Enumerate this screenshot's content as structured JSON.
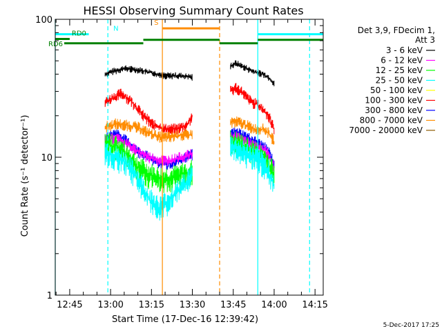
{
  "chart_data": {
    "type": "line",
    "title": "HESSI Observing Summary Count Rates",
    "xlabel": "Start Time (17-Dec-16 12:39:42)",
    "ylabel": "Count Rate (s⁻¹ detector⁻¹)",
    "y_scale": "log",
    "ylim": [
      1,
      100
    ],
    "xlim_minutes": [
      "12:39:42",
      "14:18:00"
    ],
    "x_ticks": [
      {
        "t": "12:45",
        "label": "12:45"
      },
      {
        "t": "13:00",
        "label": "13:00"
      },
      {
        "t": "13:15",
        "label": "13:15"
      },
      {
        "t": "13:30",
        "label": "13:30"
      },
      {
        "t": "13:45",
        "label": "13:45"
      },
      {
        "t": "14:00",
        "label": "14:00"
      },
      {
        "t": "14:15",
        "label": "14:15"
      }
    ],
    "y_ticks": [
      {
        "v": 1,
        "label": "1"
      },
      {
        "v": 10,
        "label": "10"
      },
      {
        "v": 100,
        "label": "100"
      }
    ],
    "legend": {
      "placement": "right",
      "header": [
        "Det 3,9, FDecim 1,",
        "Att 3"
      ],
      "entries": [
        {
          "label": "3 - 6 keV",
          "color": "#000000"
        },
        {
          "label": "6 - 12 keV",
          "color": "#ff00ff"
        },
        {
          "label": "12 - 25 keV",
          "color": "#00ff00"
        },
        {
          "label": "25 - 50 keV",
          "color": "#00ffff"
        },
        {
          "label": "50 - 100 keV",
          "color": "#ffff00"
        },
        {
          "label": "100 - 300 keV",
          "color": "#ff0000"
        },
        {
          "label": "300 - 800 keV",
          "color": "#0000ff"
        },
        {
          "label": "800 - 7000 keV",
          "color": "#ff8c00"
        },
        {
          "label": "7000 - 20000 keV",
          "color": "#8b5a00"
        }
      ]
    },
    "series": [
      {
        "name": "3 - 6 keV",
        "color": "#000000",
        "segments": [
          {
            "t": [
              "12:58",
              "13:01",
              "13:05",
              "13:10",
              "13:15",
              "13:20",
              "13:25",
              "13:30"
            ],
            "values": [
              40,
              42,
              44,
              43,
              41,
              39,
              39,
              38
            ]
          },
          {
            "t": [
              "13:44",
              "13:46",
              "13:48",
              "13:50",
              "13:52",
              "13:54",
              "13:56",
              "13:58",
              "14:00"
            ],
            "values": [
              46,
              48,
              46,
              44,
              42,
              41,
              40,
              38,
              34
            ]
          }
        ]
      },
      {
        "name": "100 - 300 keV",
        "color": "#ff0000",
        "segments": [
          {
            "t": [
              "12:58",
              "13:01",
              "13:04",
              "13:08",
              "13:12",
              "13:16",
              "13:20",
              "13:24",
              "13:28",
              "13:30"
            ],
            "values": [
              25,
              27,
              29,
              25,
              20,
              17,
              16,
              16,
              17,
              20
            ]
          },
          {
            "t": [
              "13:44",
              "13:46",
              "13:48",
              "13:50",
              "13:52",
              "13:54",
              "13:56",
              "13:58",
              "14:00"
            ],
            "values": [
              30,
              32,
              30,
              27,
              25,
              24,
              22,
              20,
              16
            ]
          }
        ]
      },
      {
        "name": "800 - 7000 keV",
        "color": "#ff8c00",
        "segments": [
          {
            "t": [
              "12:58",
              "13:02",
              "13:06",
              "13:10",
              "13:14",
              "13:18",
              "13:22",
              "13:26",
              "13:30"
            ],
            "values": [
              16.5,
              17.5,
              17,
              16.5,
              15,
              14,
              14,
              14.5,
              14.5
            ]
          },
          {
            "t": [
              "13:44",
              "13:47",
              "13:50",
              "13:53",
              "13:56",
              "13:58",
              "14:00"
            ],
            "values": [
              18,
              18,
              17,
              16,
              16,
              15,
              13
            ]
          }
        ]
      },
      {
        "name": "300 - 800 keV",
        "color": "#0000ff",
        "segments": [
          {
            "t": [
              "12:58",
              "13:02",
              "13:06",
              "13:10",
              "13:14",
              "13:18",
              "13:22",
              "13:26",
              "13:30"
            ],
            "values": [
              13.5,
              15,
              13,
              11,
              10,
              9,
              9,
              9.5,
              10.5
            ]
          },
          {
            "t": [
              "13:44",
              "13:47",
              "13:50",
              "13:53",
              "13:56",
              "13:58",
              "14:00"
            ],
            "values": [
              15,
              15,
              14,
              13,
              12,
              11,
              9
            ]
          }
        ]
      },
      {
        "name": "6 - 12 keV",
        "color": "#ff00ff",
        "segments": [
          {
            "t": [
              "12:58",
              "13:02",
              "13:06",
              "13:10",
              "13:14",
              "13:18",
              "13:22",
              "13:26",
              "13:30"
            ],
            "values": [
              13,
              14,
              12.5,
              11,
              10,
              9.5,
              9.5,
              10,
              10.5
            ]
          },
          {
            "t": [
              "13:44",
              "13:47",
              "13:50",
              "13:53",
              "13:56",
              "13:58",
              "14:00"
            ],
            "values": [
              14,
              14,
              13,
              12,
              11.5,
              10.5,
              8.5
            ]
          }
        ]
      },
      {
        "name": "12 - 25 keV",
        "color": "#00ff00",
        "segments": [
          {
            "t": [
              "12:58",
              "13:02",
              "13:06",
              "13:10",
              "13:14",
              "13:18",
              "13:22",
              "13:26",
              "13:30"
            ],
            "values": [
              12.5,
              12,
              10.5,
              8.5,
              7.5,
              7,
              7,
              7.5,
              8
            ]
          },
          {
            "t": [
              "13:44",
              "13:47",
              "13:50",
              "13:53",
              "13:56",
              "13:58",
              "14:00"
            ],
            "values": [
              13,
              12.5,
              11.5,
              11,
              10,
              9,
              7.5
            ]
          }
        ]
      },
      {
        "name": "25 - 50 keV",
        "color": "#00ffff",
        "segments": [
          {
            "t": [
              "12:58",
              "13:02",
              "13:06",
              "13:10",
              "13:14",
              "13:18",
              "13:22",
              "13:26",
              "13:30"
            ],
            "values": [
              11,
              10,
              9,
              7,
              5,
              4.3,
              5,
              6,
              7.5
            ]
          },
          {
            "t": [
              "13:44",
              "13:47",
              "13:50",
              "13:53",
              "13:56",
              "13:58",
              "14:00"
            ],
            "values": [
              12,
              11.5,
              10.5,
              10,
              9,
              8,
              6
            ]
          }
        ]
      }
    ],
    "attenuator_bars": [
      {
        "label": "N",
        "color": "#00ffff",
        "t0": "12:39:42",
        "t1": "12:52",
        "value": 78
      },
      {
        "label": "",
        "color": "#00ffff",
        "t0": "13:54",
        "t1": "14:18",
        "value": 78
      },
      {
        "label": "RD0",
        "color": "#008000",
        "t0": "12:39:42",
        "t1": "12:45",
        "value": 72
      },
      {
        "label": "RD6",
        "color": "#008000",
        "t0": "12:43",
        "t1": "13:12",
        "value": 67
      },
      {
        "label": "",
        "color": "#008000",
        "t0": "13:12",
        "t1": "13:40",
        "value": 71
      },
      {
        "label": "",
        "color": "#008000",
        "t0": "13:40",
        "t1": "13:54",
        "value": 67
      },
      {
        "label": "",
        "color": "#008000",
        "t0": "13:54",
        "t1": "14:18",
        "value": 71
      },
      {
        "label": "S",
        "color": "#ff8c00",
        "t0": "13:19",
        "t1": "13:40",
        "value": 86
      }
    ],
    "vertical_markers": [
      {
        "t": "12:39:42",
        "color": "#00ffff",
        "style": "solid"
      },
      {
        "t": "12:59",
        "color": "#00ffff",
        "style": "dashed"
      },
      {
        "t": "13:19",
        "color": "#ff8c00",
        "style": "solid"
      },
      {
        "t": "13:40",
        "color": "#ff8c00",
        "style": "dashed"
      },
      {
        "t": "13:54",
        "color": "#00ffff",
        "style": "solid"
      },
      {
        "t": "14:13",
        "color": "#00ffff",
        "style": "dashed"
      }
    ],
    "footer_date": "5-Dec-2017 17:25"
  }
}
